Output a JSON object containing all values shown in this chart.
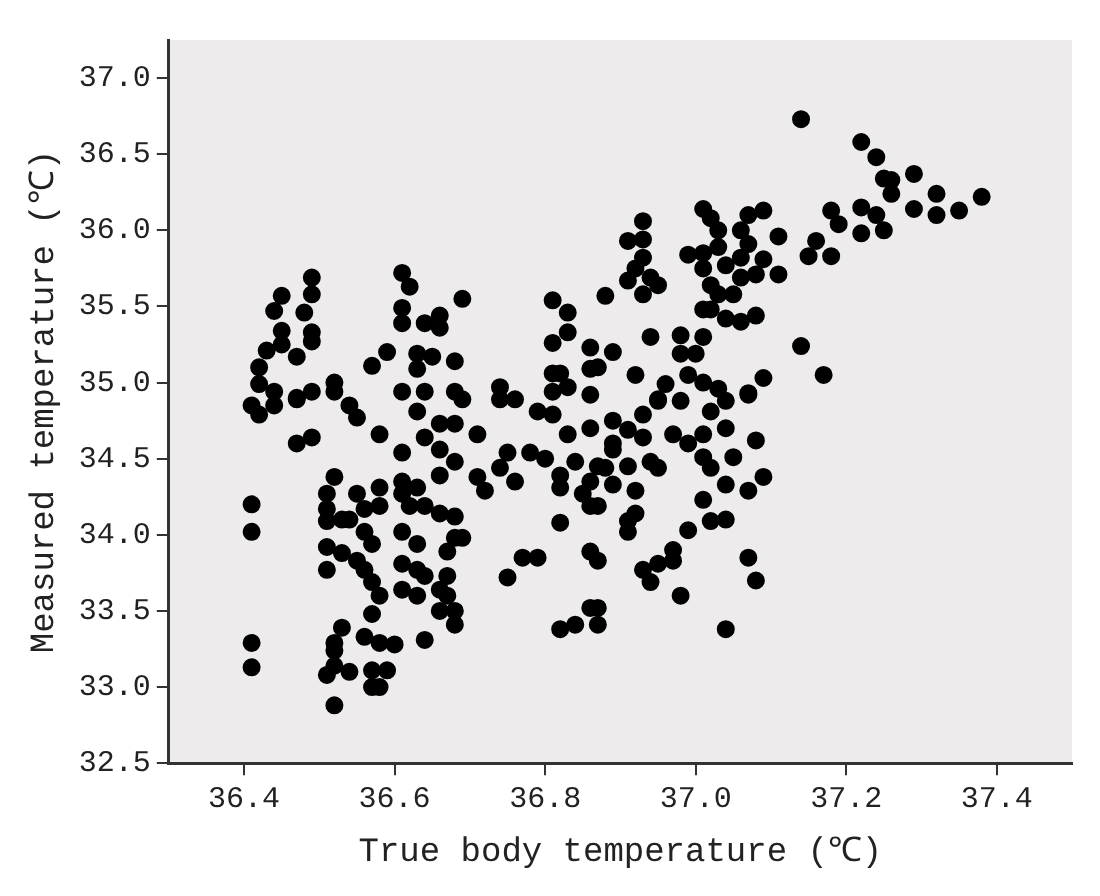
{
  "chart_data": {
    "type": "scatter",
    "xlabel": "True body temperature (℃)",
    "ylabel": "Measured temperature (℃)",
    "xlim": [
      36.3,
      37.5
    ],
    "ylim": [
      32.5,
      37.25
    ],
    "xticks": [
      36.4,
      36.6,
      36.8,
      {
        "value": 37,
        "label": "37.0"
      },
      37.2,
      37.4
    ],
    "yticks": [
      32.5,
      {
        "value": 33,
        "label": "33.0"
      },
      33.5,
      {
        "value": 34,
        "label": "34.0"
      },
      34.5,
      {
        "value": 35,
        "label": "35.0"
      },
      35.5,
      {
        "value": 36,
        "label": "36.0"
      },
      36.5,
      {
        "value": 37,
        "label": "37.0"
      }
    ],
    "grid": false,
    "legend": false,
    "marker": "circle",
    "series": [
      {
        "color": "#000000",
        "x": [
          36.49,
          36.45,
          36.49,
          36.44,
          36.48,
          36.45,
          36.49,
          36.45,
          36.49,
          36.47,
          36.43,
          36.42,
          36.42,
          36.44,
          36.47,
          36.49,
          36.52,
          36.52,
          36.61,
          36.62,
          36.61,
          36.61,
          36.64,
          36.66,
          36.66,
          36.69,
          36.57,
          36.59,
          36.63,
          36.65,
          36.68,
          36.63,
          36.61,
          36.64,
          36.68,
          36.74,
          36.76,
          36.81,
          36.83,
          36.83,
          36.81,
          36.81,
          36.82,
          36.86,
          36.88,
          36.89,
          36.86,
          36.87,
          36.81,
          36.83,
          36.86,
          37.14,
          37.22,
          37.24,
          37.25,
          37.26,
          37.29,
          37.26,
          37.32,
          37.38,
          37.29,
          37.32,
          37.35,
          37.22,
          37.24,
          37.22,
          37.25,
          37.18,
          37.19,
          37.16,
          37.15,
          37.18,
          37.14,
          37.17,
          37.01,
          37.02,
          37.03,
          37.07,
          37.09,
          37.06,
          37.11,
          36.99,
          37.01,
          37.03,
          37.07,
          37.04,
          37.06,
          37.09,
          37.01,
          37.11,
          37.06,
          37.08,
          37.02,
          37.03,
          37.05,
          37.01,
          37.02,
          37.04,
          37.06,
          37.08,
          36.93,
          36.91,
          36.93,
          36.93,
          36.92,
          36.91,
          36.94,
          36.95,
          36.93,
          36.94,
          36.98,
          37.01,
          36.98,
          37.0,
          36.92,
          36.96,
          36.99,
          37.01,
          37.03,
          37.07,
          37.09,
          36.95,
          36.89,
          36.86,
          36.91,
          36.93,
          36.95,
          36.98,
          36.97,
          36.99,
          37.01,
          37.02,
          37.04,
          37.07,
          37.04,
          37.08,
          36.93,
          36.89,
          36.87,
          36.91,
          36.94,
          36.95,
          37.01,
          37.05,
          37.02,
          36.86,
          36.89,
          36.92,
          37.04,
          37.07,
          37.09,
          37.01,
          36.86,
          36.92,
          36.91,
          37.02,
          37.04,
          36.91,
          36.99,
          36.86,
          36.87,
          36.97,
          36.97,
          36.95,
          36.93,
          36.94,
          36.98,
          37.07,
          37.08,
          36.86,
          36.87,
          36.87,
          37.04,
          36.41,
          36.41,
          36.41,
          36.41,
          36.41,
          36.42,
          36.44,
          36.47,
          36.49,
          36.47,
          36.55,
          36.54,
          36.58,
          36.52,
          36.51,
          36.51,
          36.51,
          36.53,
          36.54,
          36.55,
          36.56,
          36.58,
          36.58,
          36.56,
          36.57,
          36.51,
          36.53,
          36.55,
          36.51,
          36.56,
          36.57,
          36.58,
          36.57,
          36.53,
          36.52,
          36.52,
          36.56,
          36.58,
          36.6,
          36.52,
          36.51,
          36.54,
          36.57,
          36.59,
          36.57,
          36.58,
          36.52,
          36.61,
          36.61,
          36.61,
          36.63,
          36.62,
          36.64,
          36.61,
          36.63,
          36.61,
          36.63,
          36.64,
          36.61,
          36.63,
          36.66,
          36.67,
          36.66,
          36.68,
          36.68,
          36.64,
          36.67,
          36.68,
          36.69,
          36.67,
          36.66,
          36.68,
          36.66,
          36.68,
          36.66,
          36.64,
          36.66,
          36.68,
          36.69,
          36.63,
          36.71,
          36.71,
          36.72,
          36.74,
          36.75,
          36.76,
          36.78,
          36.8,
          36.82,
          36.82,
          36.81,
          36.83,
          36.84,
          36.85,
          36.87,
          36.82,
          36.77,
          36.79,
          36.75,
          36.82,
          36.84,
          36.74,
          36.79,
          36.88,
          36.89
        ],
        "values": [
          35.69,
          35.57,
          35.58,
          35.47,
          35.46,
          35.34,
          35.33,
          35.25,
          35.27,
          35.17,
          35.21,
          35.1,
          34.99,
          34.94,
          34.9,
          34.94,
          35.0,
          34.94,
          35.72,
          35.63,
          35.49,
          35.39,
          35.39,
          35.44,
          35.36,
          35.55,
          35.11,
          35.2,
          35.19,
          35.17,
          35.14,
          35.09,
          34.94,
          34.94,
          34.94,
          34.97,
          34.89,
          35.54,
          35.46,
          35.33,
          35.26,
          35.06,
          35.06,
          35.23,
          35.57,
          35.2,
          35.09,
          35.1,
          34.94,
          34.97,
          34.92,
          36.73,
          36.58,
          36.48,
          36.34,
          36.33,
          36.37,
          36.24,
          36.24,
          36.22,
          36.14,
          36.1,
          36.13,
          36.15,
          36.1,
          35.98,
          36.0,
          36.13,
          36.04,
          35.93,
          35.83,
          35.83,
          35.24,
          35.05,
          36.14,
          36.08,
          36.0,
          36.1,
          36.13,
          36.0,
          35.96,
          35.84,
          35.85,
          35.89,
          35.91,
          35.77,
          35.82,
          35.81,
          35.75,
          35.71,
          35.69,
          35.71,
          35.64,
          35.58,
          35.58,
          35.48,
          35.48,
          35.42,
          35.4,
          35.44,
          36.06,
          35.93,
          35.94,
          35.82,
          35.75,
          35.67,
          35.69,
          35.64,
          35.58,
          35.3,
          35.31,
          35.3,
          35.19,
          35.19,
          35.05,
          34.99,
          35.05,
          35.0,
          34.96,
          34.93,
          35.03,
          34.89,
          34.75,
          34.7,
          34.69,
          34.79,
          34.88,
          34.88,
          34.66,
          34.6,
          34.66,
          34.81,
          34.88,
          34.92,
          34.7,
          34.62,
          34.64,
          34.6,
          34.45,
          34.45,
          34.48,
          34.44,
          34.51,
          34.51,
          34.44,
          34.35,
          34.33,
          34.29,
          34.33,
          34.29,
          34.38,
          34.23,
          34.19,
          34.14,
          34.09,
          34.09,
          34.1,
          34.02,
          34.03,
          33.89,
          33.83,
          33.9,
          33.83,
          33.81,
          33.77,
          33.69,
          33.6,
          33.85,
          33.7,
          33.52,
          33.52,
          33.41,
          33.38,
          34.2,
          34.02,
          33.29,
          33.13,
          34.85,
          34.79,
          34.85,
          34.6,
          34.64,
          34.89,
          34.77,
          34.85,
          34.66,
          34.38,
          34.27,
          34.17,
          34.09,
          34.1,
          34.1,
          34.27,
          34.17,
          34.31,
          34.19,
          34.02,
          33.94,
          33.92,
          33.88,
          33.83,
          33.77,
          33.77,
          33.69,
          33.6,
          33.48,
          33.39,
          33.29,
          33.24,
          33.33,
          33.29,
          33.28,
          33.14,
          33.08,
          33.1,
          33.11,
          33.11,
          33.0,
          33.0,
          32.88,
          34.54,
          34.35,
          34.27,
          34.31,
          34.19,
          34.19,
          34.02,
          33.94,
          33.81,
          33.77,
          33.73,
          33.64,
          33.6,
          33.64,
          33.6,
          33.5,
          33.5,
          33.41,
          33.31,
          33.89,
          33.98,
          33.98,
          33.73,
          34.14,
          34.12,
          34.39,
          34.48,
          34.56,
          34.64,
          34.73,
          34.73,
          34.89,
          34.81,
          34.66,
          34.38,
          34.29,
          34.44,
          34.54,
          34.35,
          34.54,
          34.5,
          34.39,
          34.31,
          34.79,
          34.66,
          34.48,
          34.27,
          34.19,
          34.08,
          33.85,
          33.85,
          33.72,
          33.38,
          33.41,
          34.89,
          34.81,
          34.44,
          34.56
        ]
      }
    ]
  }
}
